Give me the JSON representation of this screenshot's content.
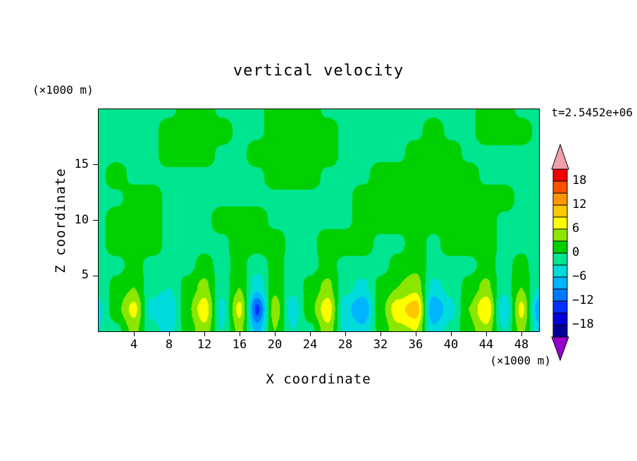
{
  "figure": {
    "background": "#ffffff",
    "text_color": "#000000"
  },
  "chart_data": {
    "type": "heatmap",
    "style": "filled-contour",
    "title": "vertical velocity",
    "timestamp_label": "t=2.5452e+06",
    "xlabel": "X coordinate",
    "ylabel": "Z coordinate",
    "x_unit_label": "(×1000 m)",
    "y_unit_label": "(×1000 m)",
    "xlim": [
      0,
      50
    ],
    "ylim": [
      0,
      20
    ],
    "x_ticks": [
      4,
      8,
      12,
      16,
      20,
      24,
      28,
      32,
      36,
      40,
      44,
      48
    ],
    "y_ticks": [
      5,
      10,
      15
    ],
    "grid_lines": false,
    "legend_position": "right",
    "colorbar": {
      "orientation": "vertical",
      "labels": [
        "18",
        "12",
        "6",
        "0",
        "−6",
        "−12",
        "−18"
      ],
      "label_values": [
        18,
        12,
        6,
        0,
        -6,
        -12,
        -18
      ],
      "levels": [
        -21,
        -18,
        -15,
        -12,
        -9,
        -6,
        -3,
        0,
        3,
        6,
        9,
        12,
        15,
        18,
        21
      ],
      "colors": [
        "#000096",
        "#0000dc",
        "#0032ff",
        "#0078ff",
        "#00b4ff",
        "#00dcdc",
        "#00e58f",
        "#00d000",
        "#8ce600",
        "#ffff00",
        "#ffc800",
        "#ff9600",
        "#ff5000",
        "#f00000"
      ],
      "under_arrow_color": "#9600c8",
      "over_arrow_color": "#f0a0aa"
    },
    "grid": {
      "x": [
        0,
        2,
        4,
        6,
        8,
        10,
        12,
        14,
        16,
        18,
        20,
        22,
        24,
        26,
        28,
        30,
        32,
        34,
        36,
        38,
        40,
        42,
        44,
        46,
        48,
        50
      ],
      "z": [
        0,
        2,
        4,
        6,
        8,
        10,
        12,
        14,
        16,
        18,
        20
      ],
      "values": [
        [
          -3,
          -1,
          4,
          -2,
          -4,
          1,
          5,
          -3,
          4,
          -7,
          3,
          -3,
          -1,
          5,
          -4,
          -5,
          1,
          5,
          6,
          -5,
          -2,
          2,
          5,
          -3,
          4,
          -5
        ],
        [
          -4,
          2,
          7,
          -4,
          -6,
          2,
          8,
          -4,
          7,
          -13,
          5,
          -5,
          2,
          8,
          -5,
          -9,
          2,
          8,
          11,
          -9,
          -4,
          3,
          9,
          -6,
          7,
          -8
        ],
        [
          -2,
          1,
          3,
          -2,
          -3,
          1,
          4,
          -2,
          3,
          -5,
          2,
          -2,
          1,
          4,
          -2,
          -4,
          1,
          3,
          5,
          -4,
          -2,
          1,
          4,
          -2,
          3,
          -3
        ],
        [
          -1,
          -1,
          1,
          -1,
          -1,
          -1,
          1,
          -1,
          1,
          -2,
          1,
          -1,
          -1,
          1,
          -1,
          -1,
          -1,
          1,
          2,
          -1,
          -1,
          -1,
          1,
          -1,
          1,
          -2
        ],
        [
          -1,
          2,
          2,
          2,
          -1,
          -1,
          -1,
          -1,
          2,
          2,
          2,
          -1,
          -1,
          2,
          2,
          2,
          -1,
          -1,
          2,
          -1,
          2,
          2,
          2,
          -1,
          -1,
          -1
        ],
        [
          -1,
          2,
          2,
          2,
          -1,
          -1,
          -1,
          2,
          2,
          2,
          -1,
          -1,
          -1,
          -1,
          -1,
          2,
          2,
          2,
          2,
          2,
          2,
          2,
          2,
          -1,
          -1,
          -1
        ],
        [
          -1,
          -1,
          2,
          2,
          -1,
          -1,
          -1,
          -1,
          -1,
          -1,
          -1,
          -1,
          -1,
          -1,
          -1,
          2,
          2,
          2,
          2,
          2,
          2,
          2,
          2,
          2,
          -1,
          -1
        ],
        [
          -1,
          2,
          -1,
          -1,
          -1,
          -1,
          -1,
          -1,
          -1,
          -1,
          2,
          2,
          2,
          -1,
          -1,
          -1,
          2,
          2,
          2,
          2,
          2,
          2,
          -1,
          -1,
          -1,
          -1
        ],
        [
          -1,
          -1,
          -1,
          -1,
          2,
          2,
          2,
          -1,
          -1,
          2,
          2,
          2,
          2,
          2,
          -1,
          -1,
          -1,
          -1,
          2,
          2,
          2,
          -1,
          -1,
          -1,
          -1,
          -1
        ],
        [
          -1,
          -1,
          -1,
          -1,
          2,
          2,
          2,
          2,
          -1,
          -1,
          2,
          2,
          2,
          2,
          -1,
          -1,
          -1,
          -1,
          -1,
          2,
          -1,
          -1,
          2,
          2,
          2,
          -1
        ],
        [
          -1,
          -1,
          -1,
          -1,
          -1,
          2,
          2,
          -1,
          -1,
          -1,
          2,
          2,
          2,
          -1,
          -1,
          -1,
          -1,
          -1,
          -1,
          -1,
          -1,
          -1,
          2,
          2,
          -1,
          -1
        ]
      ]
    }
  }
}
